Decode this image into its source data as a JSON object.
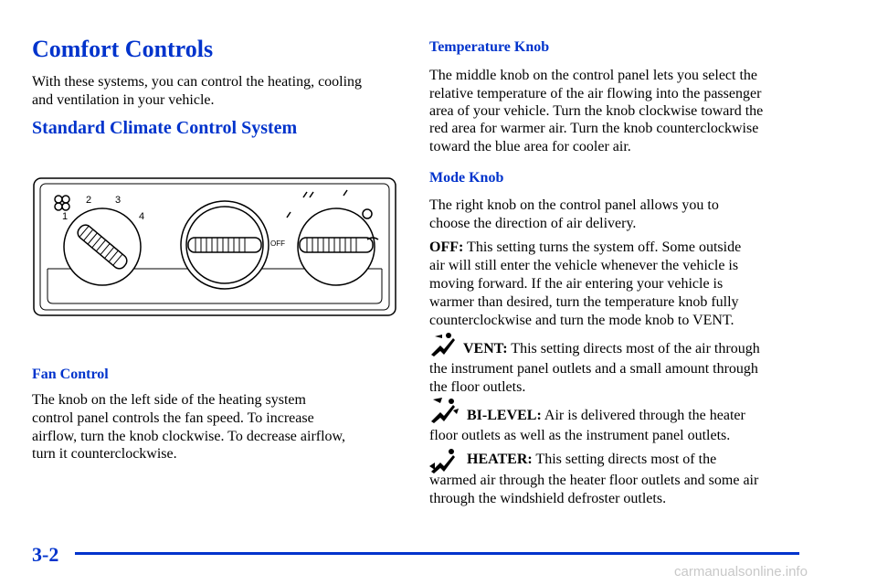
{
  "left": {
    "title": "Comfort Controls",
    "intro": [
      "With these systems, you can control the heating, cooling",
      "and ventilation in your vehicle."
    ],
    "section_heading": "Standard Climate Control System",
    "diagram": {
      "labels": [
        "1",
        "2",
        "3",
        "4",
        "OFF"
      ]
    },
    "fan_heading": "Fan Control",
    "fan_text": [
      "The knob on the left side of the heating system",
      "control panel controls the fan speed. To increase",
      "airflow, turn the knob clockwise. To decrease airflow,",
      "turn it counterclockwise."
    ]
  },
  "right": {
    "temp_heading": "Temperature Knob",
    "temp_text": [
      "The middle knob on the control panel lets you select the",
      "relative temperature of the air flowing into the passenger",
      "area of your vehicle. Turn the knob clockwise toward the",
      "red area for warmer air. Turn the knob counterclockwise",
      "toward the blue area for cooler air."
    ],
    "mode_heading": "Mode Knob",
    "mode_text": [
      "The right knob on the control panel allows you to",
      "choose the direction of air delivery."
    ],
    "off": {
      "term": "OFF:",
      "lines": [
        " This setting turns the system off. Some outside",
        "air will still enter the vehicle whenever the vehicle is",
        "moving forward. If the air entering your vehicle is",
        "warmer than desired, turn the temperature knob fully",
        "counterclockwise and turn the mode knob to VENT."
      ]
    },
    "vent": {
      "term": "VENT:",
      "lines": [
        " This setting directs most of the air through",
        "the instrument panel outlets and a small amount through",
        "the floor outlets."
      ]
    },
    "bilevel": {
      "term": "BI-LEVEL:",
      "lines": [
        " Air is delivered through the heater",
        "floor outlets as well as the instrument panel outlets."
      ]
    },
    "heater": {
      "term": "HEATER:",
      "lines": [
        " This setting directs most of the",
        "warmed air through the heater floor outlets and some air",
        "through the windshield defroster outlets."
      ]
    }
  },
  "footer": {
    "page": "3-2",
    "watermark": "carmanualsonline.info"
  }
}
